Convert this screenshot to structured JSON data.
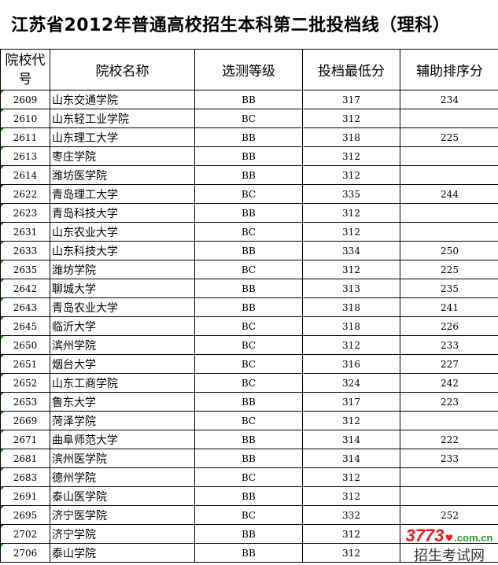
{
  "title": "江苏省2012年普通高校招生本科第二批投档线（理科）",
  "headers": {
    "code": "院校代号",
    "name": "院校名称",
    "grade": "选测等级",
    "min_score": "投档最低分",
    "aux_score": "辅助排序分"
  },
  "rows": [
    {
      "code": "2609",
      "name": "山东交通学院",
      "grade": "BB",
      "min": "317",
      "aux": "234"
    },
    {
      "code": "2610",
      "name": "山东轻工业学院",
      "grade": "BC",
      "min": "312",
      "aux": ""
    },
    {
      "code": "2611",
      "name": "山东理工大学",
      "grade": "BB",
      "min": "318",
      "aux": "225"
    },
    {
      "code": "2613",
      "name": "枣庄学院",
      "grade": "BB",
      "min": "312",
      "aux": ""
    },
    {
      "code": "2614",
      "name": "潍坊医学院",
      "grade": "BB",
      "min": "312",
      "aux": ""
    },
    {
      "code": "2622",
      "name": "青岛理工大学",
      "grade": "BC",
      "min": "335",
      "aux": "244"
    },
    {
      "code": "2623",
      "name": "青岛科技大学",
      "grade": "BB",
      "min": "312",
      "aux": ""
    },
    {
      "code": "2631",
      "name": "山东农业大学",
      "grade": "BC",
      "min": "312",
      "aux": ""
    },
    {
      "code": "2633",
      "name": "山东科技大学",
      "grade": "BB",
      "min": "334",
      "aux": "250"
    },
    {
      "code": "2635",
      "name": "潍坊学院",
      "grade": "BC",
      "min": "312",
      "aux": "225"
    },
    {
      "code": "2642",
      "name": "聊城大学",
      "grade": "BB",
      "min": "313",
      "aux": "235"
    },
    {
      "code": "2643",
      "name": "青岛农业大学",
      "grade": "BB",
      "min": "318",
      "aux": "241"
    },
    {
      "code": "2645",
      "name": "临沂大学",
      "grade": "BC",
      "min": "318",
      "aux": "226"
    },
    {
      "code": "2650",
      "name": "滨州学院",
      "grade": "BC",
      "min": "312",
      "aux": "233"
    },
    {
      "code": "2651",
      "name": "烟台大学",
      "grade": "BC",
      "min": "316",
      "aux": "227"
    },
    {
      "code": "2652",
      "name": "山东工商学院",
      "grade": "BC",
      "min": "324",
      "aux": "242"
    },
    {
      "code": "2653",
      "name": "鲁东大学",
      "grade": "BB",
      "min": "317",
      "aux": "223"
    },
    {
      "code": "2669",
      "name": "菏泽学院",
      "grade": "BC",
      "min": "312",
      "aux": ""
    },
    {
      "code": "2671",
      "name": "曲阜师范大学",
      "grade": "BB",
      "min": "314",
      "aux": "222"
    },
    {
      "code": "2681",
      "name": "滨州医学院",
      "grade": "BB",
      "min": "314",
      "aux": "233"
    },
    {
      "code": "2683",
      "name": "德州学院",
      "grade": "BC",
      "min": "312",
      "aux": ""
    },
    {
      "code": "2691",
      "name": "泰山医学院",
      "grade": "BB",
      "min": "312",
      "aux": ""
    },
    {
      "code": "2695",
      "name": "济宁医学院",
      "grade": "BC",
      "min": "332",
      "aux": "252"
    },
    {
      "code": "2702",
      "name": "济宁学院",
      "grade": "BB",
      "min": "312",
      "aux": ""
    },
    {
      "code": "2706",
      "name": "泰山学院",
      "grade": "BB",
      "min": "312",
      "aux": ""
    }
  ],
  "watermark": {
    "number": "3773",
    "domain": ".com.cn",
    "name": "招生考试网"
  },
  "colors": {
    "watermark_red": "#e81c1c",
    "watermark_green": "#2a9a2a",
    "cell_marker": "#1a8a1a"
  }
}
